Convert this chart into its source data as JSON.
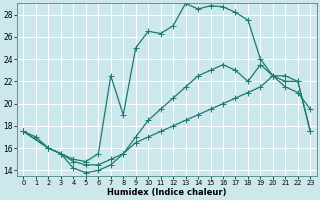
{
  "xlabel": "Humidex (Indice chaleur)",
  "bg_color": "#cce8ec",
  "grid_color": "#ffffff",
  "line_color": "#1a7a6e",
  "xlim": [
    -0.5,
    23.5
  ],
  "ylim": [
    13.5,
    29.0
  ],
  "xticks": [
    0,
    1,
    2,
    3,
    4,
    5,
    6,
    7,
    8,
    9,
    10,
    11,
    12,
    13,
    14,
    15,
    16,
    17,
    18,
    19,
    20,
    21,
    22,
    23
  ],
  "yticks": [
    14,
    16,
    18,
    20,
    22,
    24,
    26,
    28
  ],
  "line1_x": [
    0,
    1,
    2,
    3,
    4,
    5,
    6,
    7,
    8,
    9,
    10,
    11,
    12,
    13,
    14,
    15,
    16,
    17,
    18,
    19,
    20,
    21,
    22,
    23
  ],
  "line1_y": [
    17.5,
    17.0,
    16.0,
    15.5,
    15.0,
    14.8,
    15.5,
    22.5,
    19.0,
    25.0,
    26.5,
    26.3,
    27.0,
    29.0,
    28.5,
    28.8,
    28.7,
    28.2,
    27.5,
    24.0,
    22.5,
    21.5,
    21.0,
    19.5
  ],
  "line1_markers": [
    0,
    1,
    2,
    3,
    4,
    5,
    6,
    7,
    8,
    9,
    10,
    11,
    12,
    13,
    14,
    15,
    16,
    17,
    18,
    19,
    20,
    21,
    22,
    23
  ],
  "line2_x": [
    0,
    2,
    3,
    4,
    5,
    6,
    7,
    8,
    9,
    10,
    11,
    12,
    13,
    14,
    15,
    16,
    17,
    18,
    19,
    20,
    21,
    22,
    23
  ],
  "line2_y": [
    17.5,
    16.0,
    15.5,
    14.8,
    14.5,
    14.5,
    15.0,
    15.5,
    16.5,
    17.0,
    17.5,
    18.0,
    18.5,
    19.0,
    19.5,
    20.0,
    20.5,
    21.0,
    21.5,
    22.5,
    22.0,
    22.0,
    17.5
  ],
  "line3_x": [
    0,
    2,
    3,
    4,
    5,
    6,
    7,
    8,
    9,
    10,
    11,
    12,
    13,
    14,
    15,
    16,
    17,
    18,
    19,
    20,
    21,
    22,
    23
  ],
  "line3_y": [
    17.5,
    16.0,
    15.5,
    14.2,
    13.8,
    14.0,
    14.5,
    15.5,
    17.0,
    18.5,
    19.5,
    20.5,
    21.5,
    22.5,
    23.0,
    23.5,
    23.0,
    22.0,
    23.5,
    22.5,
    22.5,
    22.0,
    17.5
  ]
}
